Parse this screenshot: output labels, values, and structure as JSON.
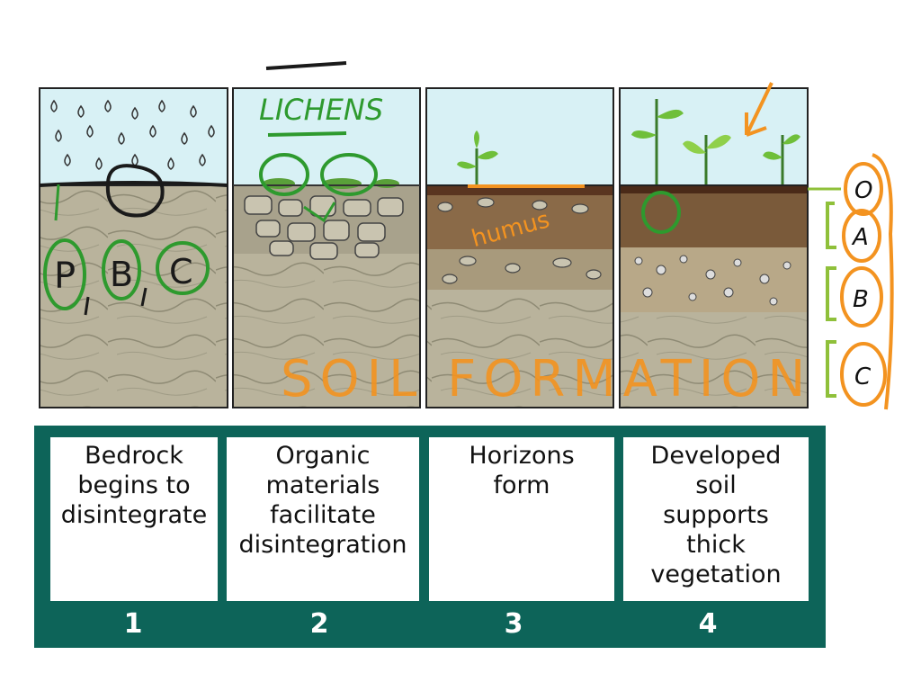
{
  "stages": [
    {
      "label": "Bedrock\nbegins to\ndisintegrate",
      "number": "1"
    },
    {
      "label": "Organic\nmaterials\nfacilitate\ndisintegration",
      "number": "2"
    },
    {
      "label": "Horizons\nform",
      "number": "3"
    },
    {
      "label": "Developed\nsoil\nsupports\nthick\nvegetation",
      "number": "4"
    }
  ],
  "annotations": {
    "lichens": "LICHENS",
    "humus": "humus",
    "title": "SOIL FORMATION",
    "pbc": [
      "P",
      "B",
      "C"
    ]
  },
  "horizons": [
    "O",
    "A",
    "B",
    "C"
  ],
  "colors": {
    "sky": "#d8f1f5",
    "rock": "#b9b39c",
    "panel_bg": "#0d6459",
    "ink_green": "#2e9a2e",
    "ink_orange": "#f39320",
    "ink_black": "#1a1a1a"
  }
}
